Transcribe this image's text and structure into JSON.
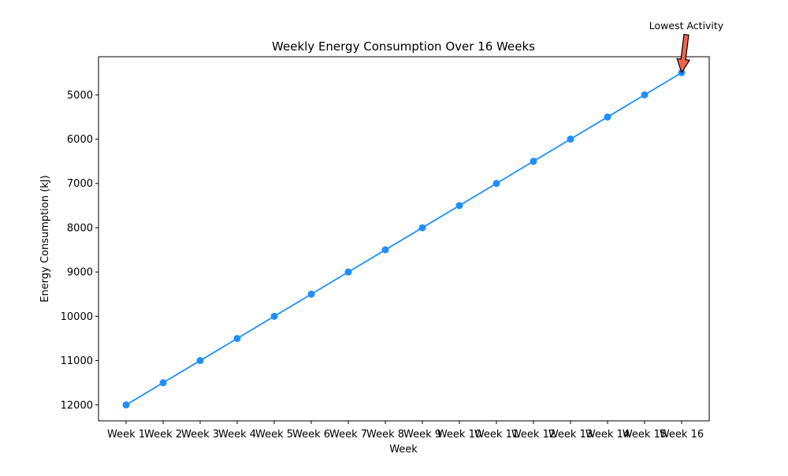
{
  "chart_data": {
    "type": "line",
    "title": "Weekly Energy Consumption Over 16 Weeks",
    "xlabel": "Week",
    "ylabel": "Energy Consumption (kJ)",
    "y_inverted": true,
    "ylim": [
      12360,
      4140
    ],
    "yticks": [
      5000,
      6000,
      7000,
      8000,
      9000,
      10000,
      11000,
      12000
    ],
    "ytick_labels": [
      "5000",
      "6000",
      "7000",
      "8000",
      "9000",
      "10000",
      "11000",
      "12000"
    ],
    "grid": false,
    "categories": [
      "Week 1",
      "Week 2",
      "Week 3",
      "Week 4",
      "Week 5",
      "Week 6",
      "Week 7",
      "Week 8",
      "Week 9",
      "Week 10",
      "Week 11",
      "Week 12",
      "Week 13",
      "Week 14",
      "Week 15",
      "Week 16"
    ],
    "series": [
      {
        "values": [
          12000,
          11500,
          11000,
          10500,
          10000,
          9500,
          9000,
          8500,
          8000,
          7500,
          7000,
          6500,
          6000,
          5500,
          5000,
          4500
        ],
        "color": "#1f8fff",
        "marker": "circle"
      }
    ],
    "annotation": {
      "text": "Lowest Activity",
      "category": "Week 16",
      "value": 4500,
      "arrow_color": "#f0624d"
    }
  }
}
